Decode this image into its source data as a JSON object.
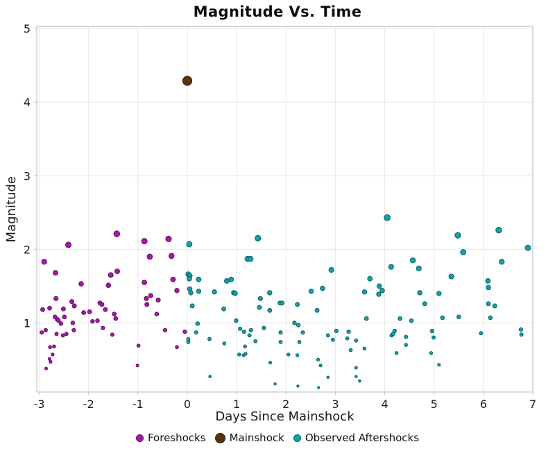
{
  "chart_data": {
    "type": "scatter",
    "title": "Magnitude Vs. Time",
    "xlabel": "Days Since Mainshock",
    "ylabel": "Magnitude",
    "xlim": [
      -3.05,
      7.0
    ],
    "ylim": [
      0.06,
      5.03
    ],
    "xticks": [
      -3,
      -2,
      -1,
      0,
      1,
      2,
      3,
      4,
      5,
      6,
      7
    ],
    "yticks": [
      1,
      2,
      3,
      4,
      5
    ],
    "grid": true,
    "gridline_color": "#e7e7e7",
    "border_color": "#c4c4c4",
    "background_color": "#ffffff",
    "legend_position": "bottom-center",
    "marker_size_rule": "radius_px = 1.5 + 1.2 * magnitude",
    "series": [
      {
        "name": "Foreshocks",
        "color": "#a818a8",
        "edge_color": "#5e0e5e",
        "points": [
          [
            -2.41,
            2.06
          ],
          [
            -2.9,
            1.83
          ],
          [
            -2.67,
            1.68
          ],
          [
            -2.15,
            1.53
          ],
          [
            -1.43,
            2.21
          ],
          [
            -1.42,
            1.7
          ],
          [
            -1.55,
            1.65
          ],
          [
            -1.6,
            1.51
          ],
          [
            -2.66,
            1.33
          ],
          [
            -2.34,
            1.29
          ],
          [
            -2.29,
            1.23
          ],
          [
            -2.93,
            1.18
          ],
          [
            -2.79,
            1.2
          ],
          [
            -2.51,
            1.19
          ],
          [
            -2.1,
            1.14
          ],
          [
            -1.98,
            1.15
          ],
          [
            -1.77,
            1.27
          ],
          [
            -1.73,
            1.25
          ],
          [
            -1.66,
            1.18
          ],
          [
            -2.68,
            1.08
          ],
          [
            -2.64,
            1.05
          ],
          [
            -2.61,
            1.03
          ],
          [
            -2.49,
            1.08
          ],
          [
            -2.56,
            0.99
          ],
          [
            -2.32,
            1.0
          ],
          [
            -1.92,
            1.02
          ],
          [
            -1.82,
            1.03
          ],
          [
            -1.48,
            1.12
          ],
          [
            -1.45,
            1.06
          ],
          [
            -2.95,
            0.87
          ],
          [
            -2.87,
            0.9
          ],
          [
            -2.65,
            0.85
          ],
          [
            -2.52,
            0.83
          ],
          [
            -2.45,
            0.85
          ],
          [
            -2.3,
            0.9
          ],
          [
            -1.71,
            0.93
          ],
          [
            -1.52,
            0.84
          ],
          [
            -2.78,
            0.67
          ],
          [
            -2.7,
            0.68
          ],
          [
            -2.73,
            0.57
          ],
          [
            -2.79,
            0.51
          ],
          [
            -2.77,
            0.47
          ],
          [
            -2.86,
            0.38
          ],
          [
            -0.87,
            2.11
          ],
          [
            -0.38,
            2.14
          ],
          [
            -0.76,
            1.9
          ],
          [
            -0.32,
            1.91
          ],
          [
            -0.87,
            1.55
          ],
          [
            -0.29,
            1.59
          ],
          [
            -0.21,
            1.44
          ],
          [
            -0.74,
            1.37
          ],
          [
            -0.83,
            1.33
          ],
          [
            -0.59,
            1.31
          ],
          [
            -0.82,
            1.25
          ],
          [
            -0.62,
            1.12
          ],
          [
            -0.45,
            0.9
          ],
          [
            -0.05,
            0.88
          ],
          [
            -0.99,
            0.69
          ],
          [
            -0.21,
            0.67
          ],
          [
            -1.01,
            0.42
          ]
        ]
      },
      {
        "name": "Mainshock",
        "color": "#59330e",
        "edge_color": "#341d07",
        "points": [
          [
            0.0,
            4.29
          ]
        ]
      },
      {
        "name": "Observed Aftershocks",
        "color": "#12a2a8",
        "edge_color": "#0b5f63",
        "points": [
          [
            0.04,
            2.07
          ],
          [
            0.02,
            1.66
          ],
          [
            0.05,
            1.64
          ],
          [
            0.04,
            1.6
          ],
          [
            0.23,
            1.59
          ],
          [
            0.05,
            1.46
          ],
          [
            0.07,
            1.41
          ],
          [
            0.23,
            1.43
          ],
          [
            0.1,
            1.23
          ],
          [
            0.21,
            0.99
          ],
          [
            0.18,
            0.87
          ],
          [
            0.02,
            0.78
          ],
          [
            0.02,
            0.74
          ],
          [
            1.43,
            2.15
          ],
          [
            1.22,
            1.87
          ],
          [
            1.28,
            1.87
          ],
          [
            0.8,
            1.57
          ],
          [
            0.89,
            1.59
          ],
          [
            0.55,
            1.42
          ],
          [
            0.94,
            1.41
          ],
          [
            0.97,
            1.4
          ],
          [
            1.67,
            1.41
          ],
          [
            1.48,
            1.33
          ],
          [
            1.88,
            1.27
          ],
          [
            1.92,
            1.27
          ],
          [
            0.74,
            1.19
          ],
          [
            1.46,
            1.21
          ],
          [
            1.67,
            1.17
          ],
          [
            0.99,
            1.03
          ],
          [
            1.07,
            0.92
          ],
          [
            1.15,
            0.88
          ],
          [
            1.29,
            0.9
          ],
          [
            1.55,
            0.93
          ],
          [
            1.89,
            0.87
          ],
          [
            1.89,
            0.74
          ],
          [
            1.26,
            0.83
          ],
          [
            1.38,
            0.75
          ],
          [
            0.45,
            0.78
          ],
          [
            0.75,
            0.72
          ],
          [
            1.17,
            0.68
          ],
          [
            1.05,
            0.57
          ],
          [
            1.14,
            0.56
          ],
          [
            1.18,
            0.58
          ],
          [
            1.68,
            0.46
          ],
          [
            0.46,
            0.27
          ],
          [
            1.78,
            0.17
          ],
          [
            2.92,
            1.72
          ],
          [
            2.51,
            1.43
          ],
          [
            2.74,
            1.47
          ],
          [
            3.59,
            1.42
          ],
          [
            2.23,
            1.25
          ],
          [
            2.63,
            1.17
          ],
          [
            2.17,
            1.0
          ],
          [
            2.25,
            0.97
          ],
          [
            2.34,
            0.87
          ],
          [
            3.02,
            0.89
          ],
          [
            3.27,
            0.88
          ],
          [
            2.85,
            0.83
          ],
          [
            2.95,
            0.77
          ],
          [
            3.24,
            0.79
          ],
          [
            3.42,
            0.76
          ],
          [
            2.27,
            0.74
          ],
          [
            3.31,
            0.63
          ],
          [
            3.59,
            0.65
          ],
          [
            2.05,
            0.57
          ],
          [
            2.23,
            0.56
          ],
          [
            2.65,
            0.5
          ],
          [
            2.7,
            0.42
          ],
          [
            3.42,
            0.39
          ],
          [
            2.85,
            0.26
          ],
          [
            3.42,
            0.27
          ],
          [
            3.49,
            0.21
          ],
          [
            2.24,
            0.14
          ],
          [
            2.66,
            0.12
          ],
          [
            3.63,
            1.06
          ],
          [
            4.05,
            2.43
          ],
          [
            4.57,
            1.85
          ],
          [
            4.13,
            1.76
          ],
          [
            4.69,
            1.74
          ],
          [
            3.7,
            1.6
          ],
          [
            3.89,
            1.5
          ],
          [
            3.95,
            1.44
          ],
          [
            3.88,
            1.39
          ],
          [
            4.71,
            1.41
          ],
          [
            5.1,
            1.4
          ],
          [
            4.81,
            1.26
          ],
          [
            4.31,
            1.06
          ],
          [
            4.54,
            1.03
          ],
          [
            5.17,
            1.07
          ],
          [
            4.96,
            0.89
          ],
          [
            4.99,
            0.8
          ],
          [
            4.14,
            0.83
          ],
          [
            4.17,
            0.85
          ],
          [
            4.2,
            0.89
          ],
          [
            4.43,
            0.81
          ],
          [
            4.43,
            0.7
          ],
          [
            4.24,
            0.59
          ],
          [
            4.94,
            0.59
          ],
          [
            5.1,
            0.43
          ],
          [
            6.31,
            2.26
          ],
          [
            5.48,
            2.19
          ],
          [
            6.9,
            2.02
          ],
          [
            5.59,
            1.96
          ],
          [
            6.37,
            1.83
          ],
          [
            5.35,
            1.63
          ],
          [
            6.09,
            1.57
          ],
          [
            6.1,
            1.48
          ],
          [
            6.1,
            1.26
          ],
          [
            6.23,
            1.23
          ],
          [
            5.5,
            1.08
          ],
          [
            6.14,
            1.07
          ],
          [
            5.95,
            0.86
          ],
          [
            6.76,
            0.91
          ],
          [
            6.77,
            0.84
          ]
        ]
      }
    ]
  }
}
